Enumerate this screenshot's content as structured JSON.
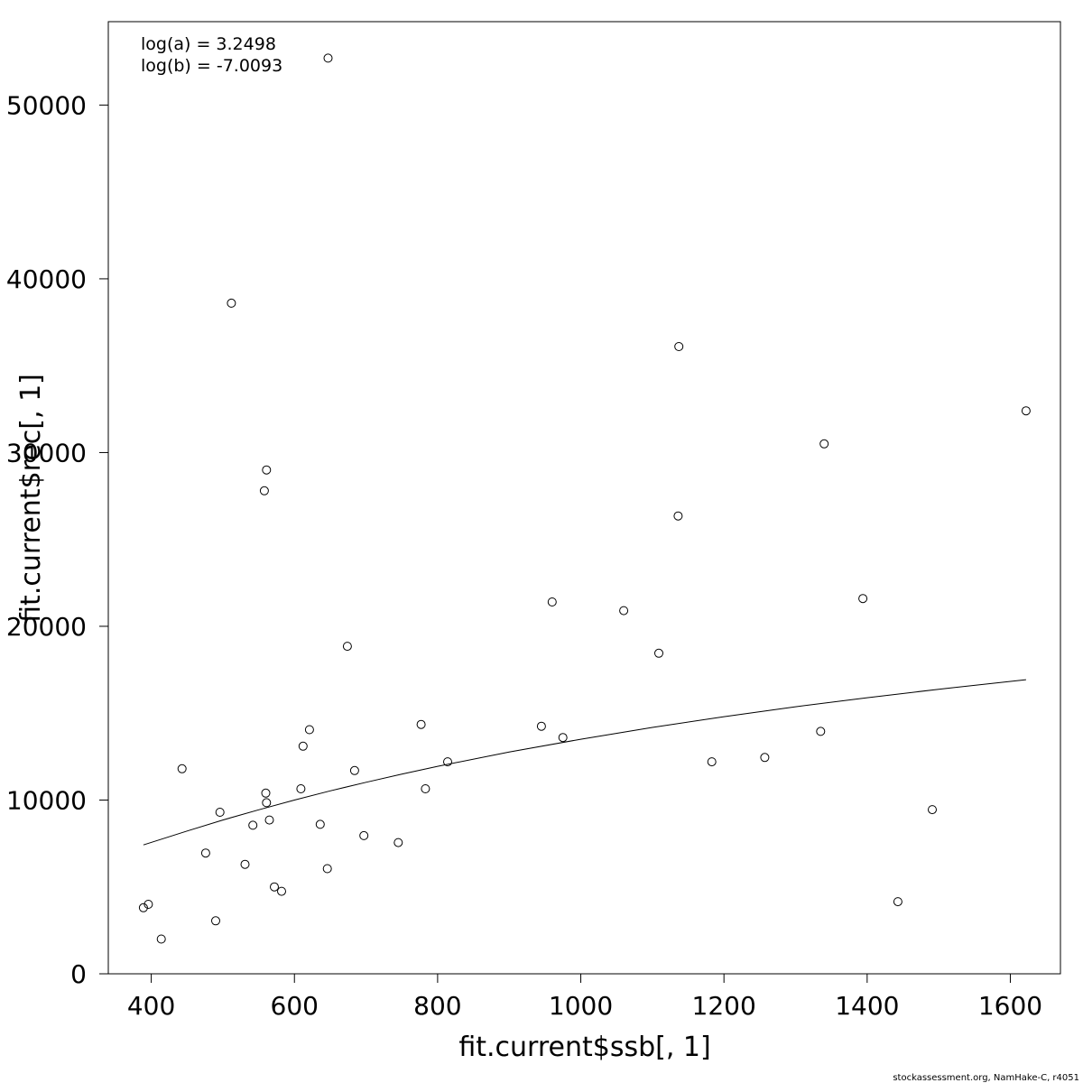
{
  "chart_data": {
    "type": "scatter",
    "title": "",
    "xlabel": "fit.current$ssb[, 1]",
    "ylabel": "fit.current$rec[, 1]",
    "xlim": [
      340,
      1670
    ],
    "ylim": [
      0,
      54800
    ],
    "xticks": [
      400,
      600,
      800,
      1000,
      1200,
      1400,
      1600
    ],
    "yticks": [
      0,
      10000,
      20000,
      30000,
      40000,
      50000
    ],
    "xtick_labels": [
      "400",
      "600",
      "800",
      "1000",
      "1200",
      "1400",
      "1600"
    ],
    "ytick_labels": [
      "0",
      "10000",
      "20000",
      "30000",
      "40000",
      "50000"
    ],
    "grid": false,
    "annotations": [
      "log(a) = 3.2498",
      "log(b) = -7.0093"
    ],
    "credit": "stockassessment.org, NamHake-C, r4051",
    "points": [
      {
        "x": 389,
        "y": 3800
      },
      {
        "x": 396,
        "y": 4000
      },
      {
        "x": 414,
        "y": 2000
      },
      {
        "x": 443,
        "y": 11800
      },
      {
        "x": 476,
        "y": 6950
      },
      {
        "x": 490,
        "y": 3050
      },
      {
        "x": 496,
        "y": 9300
      },
      {
        "x": 512,
        "y": 38600
      },
      {
        "x": 531,
        "y": 6300
      },
      {
        "x": 542,
        "y": 8550
      },
      {
        "x": 558,
        "y": 27800
      },
      {
        "x": 560,
        "y": 10400
      },
      {
        "x": 561,
        "y": 9850
      },
      {
        "x": 561,
        "y": 29000
      },
      {
        "x": 565,
        "y": 8850
      },
      {
        "x": 572,
        "y": 5000
      },
      {
        "x": 582,
        "y": 4750
      },
      {
        "x": 609,
        "y": 10650
      },
      {
        "x": 612,
        "y": 13100
      },
      {
        "x": 621,
        "y": 14050
      },
      {
        "x": 636,
        "y": 8600
      },
      {
        "x": 646,
        "y": 6050
      },
      {
        "x": 647,
        "y": 52700
      },
      {
        "x": 674,
        "y": 18850
      },
      {
        "x": 684,
        "y": 11700
      },
      {
        "x": 697,
        "y": 7950
      },
      {
        "x": 745,
        "y": 7550
      },
      {
        "x": 777,
        "y": 14350
      },
      {
        "x": 783,
        "y": 10650
      },
      {
        "x": 814,
        "y": 12200
      },
      {
        "x": 945,
        "y": 14250
      },
      {
        "x": 960,
        "y": 21400
      },
      {
        "x": 975,
        "y": 13600
      },
      {
        "x": 1060,
        "y": 20900
      },
      {
        "x": 1109,
        "y": 18450
      },
      {
        "x": 1136,
        "y": 26350
      },
      {
        "x": 1137,
        "y": 36100
      },
      {
        "x": 1183,
        "y": 12200
      },
      {
        "x": 1257,
        "y": 12450
      },
      {
        "x": 1335,
        "y": 13950
      },
      {
        "x": 1340,
        "y": 30500
      },
      {
        "x": 1394,
        "y": 21600
      },
      {
        "x": 1443,
        "y": 4150
      },
      {
        "x": 1491,
        "y": 9450
      },
      {
        "x": 1622,
        "y": 32400
      }
    ],
    "fit_line": {
      "x": [
        389,
        450,
        500,
        550,
        600,
        650,
        700,
        750,
        800,
        900,
        1000,
        1100,
        1200,
        1300,
        1400,
        1500,
        1622
      ],
      "y": [
        7420,
        8220,
        8850,
        9440,
        10000,
        10530,
        11020,
        11490,
        11940,
        12760,
        13500,
        14180,
        14800,
        15370,
        15890,
        16380,
        16930
      ]
    }
  }
}
